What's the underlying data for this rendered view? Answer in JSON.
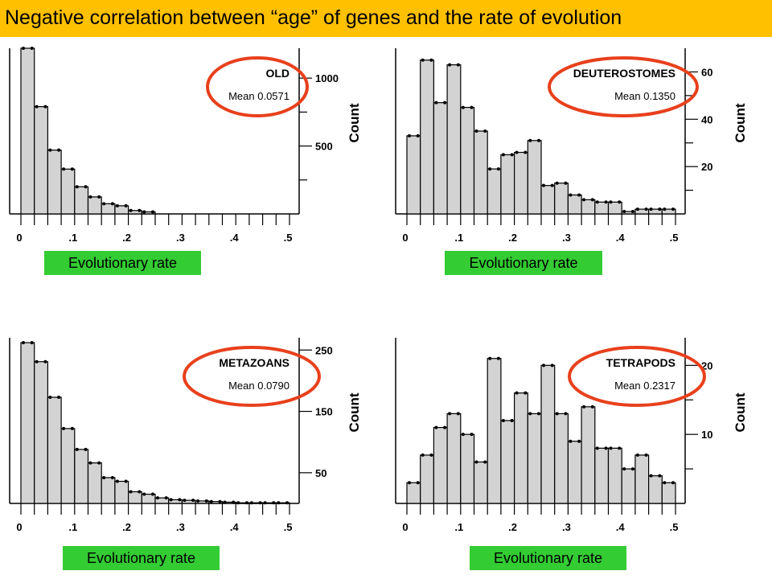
{
  "title": "Negative correlation between “age” of genes and the rate of evolution",
  "colors": {
    "title_bg": "#ffc000",
    "label_bg": "#33cc33",
    "bar_fill": "#d3d3d3",
    "circle": "#e8401c"
  },
  "chart_data": [
    {
      "type": "bar",
      "group": "OLD",
      "mean_label": "Mean 0.0571",
      "x_label": "Evolutionary rate",
      "y_label": "Count",
      "xlim": [
        0,
        0.5
      ],
      "ylim": [
        0,
        1220
      ],
      "x_ticks": [
        "0",
        ".1",
        ".2",
        ".3",
        ".4",
        ".5"
      ],
      "x_tick_values": [
        0,
        0.1,
        0.2,
        0.3,
        0.4,
        0.5
      ],
      "y_ticks": [
        "1000",
        "500"
      ],
      "y_tick_values": [
        1000,
        500
      ],
      "bin_width": 0.025,
      "bins_start": [
        0,
        0.025,
        0.05,
        0.075,
        0.1,
        0.125,
        0.15,
        0.175,
        0.2,
        0.225
      ],
      "values": [
        1240,
        790,
        470,
        330,
        200,
        125,
        75,
        60,
        25,
        15
      ]
    },
    {
      "type": "bar",
      "group": "DEUTEROSTOMES",
      "mean_label": "Mean 0.1350",
      "x_label": "Evolutionary rate",
      "y_label": "Count",
      "xlim": [
        0,
        0.5
      ],
      "ylim": [
        0,
        70
      ],
      "x_ticks": [
        "0",
        ".1",
        ".2",
        ".3",
        ".4",
        ".5"
      ],
      "x_tick_values": [
        0,
        0.1,
        0.2,
        0.3,
        0.4,
        0.5
      ],
      "y_ticks": [
        "60",
        "40",
        "20"
      ],
      "y_tick_values": [
        60,
        40,
        20
      ],
      "bin_width": 0.025,
      "bins_start": [
        0,
        0.025,
        0.05,
        0.075,
        0.1,
        0.125,
        0.15,
        0.175,
        0.2,
        0.225,
        0.25,
        0.275,
        0.3,
        0.325,
        0.35,
        0.375,
        0.4,
        0.425,
        0.45,
        0.475
      ],
      "values": [
        33,
        65,
        47,
        63,
        45,
        35,
        19,
        25,
        26,
        31,
        12,
        13,
        8,
        6,
        5,
        5,
        1,
        2,
        2,
        2
      ]
    },
    {
      "type": "bar",
      "group": "METAZOANS",
      "mean_label": "Mean 0.0790",
      "x_label": "Evolutionary rate",
      "y_label": "Count",
      "xlim": [
        0,
        0.5
      ],
      "ylim": [
        0,
        270
      ],
      "x_ticks": [
        "0",
        ".1",
        ".2",
        ".3",
        ".4",
        ".5"
      ],
      "x_tick_values": [
        0,
        0.1,
        0.2,
        0.3,
        0.4,
        0.5
      ],
      "y_ticks": [
        "250",
        "150",
        "50"
      ],
      "y_tick_values": [
        250,
        150,
        50
      ],
      "bin_width": 0.025,
      "bins_start": [
        0,
        0.025,
        0.05,
        0.075,
        0.1,
        0.125,
        0.15,
        0.175,
        0.2,
        0.225,
        0.25,
        0.275,
        0.3,
        0.325,
        0.35,
        0.375,
        0.4,
        0.425,
        0.45,
        0.475
      ],
      "values": [
        262,
        231,
        173,
        122,
        88,
        66,
        42,
        36,
        19,
        15,
        9,
        6,
        5,
        4,
        3,
        2,
        1,
        1,
        1,
        1
      ]
    },
    {
      "type": "bar",
      "group": "TETRAPODS",
      "mean_label": "Mean 0.2317",
      "x_label": "Evolutionary rate",
      "y_label": "Count",
      "xlim": [
        0,
        0.5
      ],
      "ylim": [
        0,
        24
      ],
      "x_ticks": [
        "0",
        ".1",
        ".2",
        ".3",
        ".4",
        ".5"
      ],
      "x_tick_values": [
        0,
        0.1,
        0.2,
        0.3,
        0.4,
        0.5
      ],
      "y_ticks": [
        "20",
        "10"
      ],
      "y_tick_values": [
        20,
        10
      ],
      "bin_width": 0.025,
      "bins_start": [
        0,
        0.025,
        0.05,
        0.075,
        0.1,
        0.125,
        0.15,
        0.175,
        0.2,
        0.225,
        0.25,
        0.275,
        0.3,
        0.325,
        0.35,
        0.375,
        0.4,
        0.425,
        0.45,
        0.475
      ],
      "values": [
        3,
        7,
        11,
        13,
        10,
        6,
        21,
        12,
        16,
        13,
        20,
        13,
        9,
        14,
        8,
        8,
        5,
        7,
        4,
        3
      ]
    }
  ]
}
